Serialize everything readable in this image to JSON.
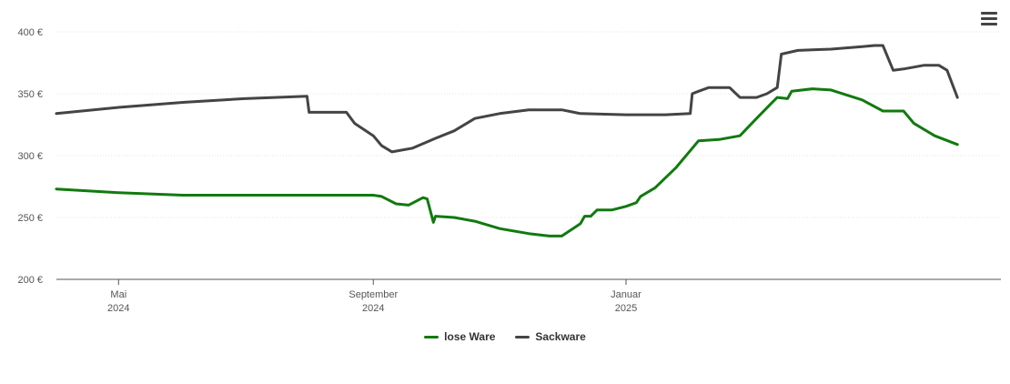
{
  "menu": {
    "icon": "hamburger-menu-icon"
  },
  "chart_data": {
    "type": "line",
    "title": "",
    "xlabel": "",
    "ylabel": "",
    "ylim": [
      200,
      400
    ],
    "xlim": [
      "2024-04-01",
      "2025-07-01"
    ],
    "y_ticks": [
      {
        "value": 200,
        "label": "200 €"
      },
      {
        "value": 250,
        "label": "250 €"
      },
      {
        "value": 300,
        "label": "300 €"
      },
      {
        "value": 350,
        "label": "350 €"
      },
      {
        "value": 400,
        "label": "400 €"
      }
    ],
    "x_ticks": [
      {
        "date": "2024-05-01",
        "label": "Mai",
        "sublabel": "2024"
      },
      {
        "date": "2024-09-01",
        "label": "September",
        "sublabel": "2024"
      },
      {
        "date": "2025-01-01",
        "label": "Januar",
        "sublabel": "2025"
      }
    ],
    "grid": true,
    "legend_position": "bottom-center",
    "series": [
      {
        "name": "lose Ware",
        "color": "#117a0f",
        "points": [
          [
            "2024-04-01",
            273
          ],
          [
            "2024-05-01",
            270
          ],
          [
            "2024-06-01",
            268
          ],
          [
            "2024-07-01",
            268
          ],
          [
            "2024-08-01",
            268
          ],
          [
            "2024-09-01",
            268
          ],
          [
            "2024-09-05",
            267
          ],
          [
            "2024-09-12",
            261
          ],
          [
            "2024-09-18",
            260
          ],
          [
            "2024-09-25",
            266
          ],
          [
            "2024-09-27",
            265
          ],
          [
            "2024-09-30",
            246
          ],
          [
            "2024-10-01",
            251
          ],
          [
            "2024-10-10",
            250
          ],
          [
            "2024-10-20",
            247
          ],
          [
            "2024-11-01",
            241
          ],
          [
            "2024-11-15",
            237
          ],
          [
            "2024-11-25",
            235
          ],
          [
            "2024-12-01",
            235
          ],
          [
            "2024-12-10",
            245
          ],
          [
            "2024-12-12",
            251
          ],
          [
            "2024-12-15",
            251
          ],
          [
            "2024-12-18",
            256
          ],
          [
            "2024-12-25",
            256
          ],
          [
            "2025-01-01",
            259
          ],
          [
            "2025-01-06",
            262
          ],
          [
            "2025-01-08",
            267
          ],
          [
            "2025-01-15",
            274
          ],
          [
            "2025-01-25",
            290
          ],
          [
            "2025-02-05",
            312
          ],
          [
            "2025-02-15",
            313
          ],
          [
            "2025-02-25",
            316
          ],
          [
            "2025-03-05",
            330
          ],
          [
            "2025-03-12",
            342
          ],
          [
            "2025-03-15",
            347
          ],
          [
            "2025-03-20",
            346
          ],
          [
            "2025-03-22",
            352
          ],
          [
            "2025-04-01",
            354
          ],
          [
            "2025-04-10",
            353
          ],
          [
            "2025-04-25",
            345
          ],
          [
            "2025-05-05",
            336
          ],
          [
            "2025-05-15",
            336
          ],
          [
            "2025-05-20",
            326
          ],
          [
            "2025-05-30",
            316
          ],
          [
            "2025-06-10",
            309
          ]
        ]
      },
      {
        "name": "Sackware",
        "color": "#444444",
        "points": [
          [
            "2024-04-01",
            334
          ],
          [
            "2024-05-01",
            339
          ],
          [
            "2024-06-01",
            343
          ],
          [
            "2024-07-01",
            346
          ],
          [
            "2024-07-31",
            348
          ],
          [
            "2024-08-01",
            335
          ],
          [
            "2024-08-10",
            335
          ],
          [
            "2024-08-19",
            335
          ],
          [
            "2024-08-23",
            326
          ],
          [
            "2024-09-01",
            316
          ],
          [
            "2024-09-05",
            308
          ],
          [
            "2024-09-10",
            303
          ],
          [
            "2024-09-20",
            306
          ],
          [
            "2024-10-01",
            314
          ],
          [
            "2024-10-10",
            320
          ],
          [
            "2024-10-20",
            330
          ],
          [
            "2024-11-01",
            334
          ],
          [
            "2024-11-15",
            337
          ],
          [
            "2024-12-01",
            337
          ],
          [
            "2024-12-10",
            334
          ],
          [
            "2025-01-01",
            333
          ],
          [
            "2025-01-20",
            333
          ],
          [
            "2025-02-01",
            334
          ],
          [
            "2025-02-02",
            350
          ],
          [
            "2025-02-05",
            352
          ],
          [
            "2025-02-10",
            355
          ],
          [
            "2025-02-20",
            355
          ],
          [
            "2025-02-25",
            347
          ],
          [
            "2025-03-05",
            347
          ],
          [
            "2025-03-10",
            350
          ],
          [
            "2025-03-15",
            355
          ],
          [
            "2025-03-17",
            382
          ],
          [
            "2025-03-25",
            385
          ],
          [
            "2025-04-10",
            386
          ],
          [
            "2025-04-25",
            388
          ],
          [
            "2025-05-01",
            389
          ],
          [
            "2025-05-05",
            389
          ],
          [
            "2025-05-10",
            369
          ],
          [
            "2025-05-15",
            370
          ],
          [
            "2025-05-25",
            373
          ],
          [
            "2025-06-01",
            373
          ],
          [
            "2025-06-05",
            369
          ],
          [
            "2025-06-10",
            347
          ]
        ]
      }
    ]
  }
}
